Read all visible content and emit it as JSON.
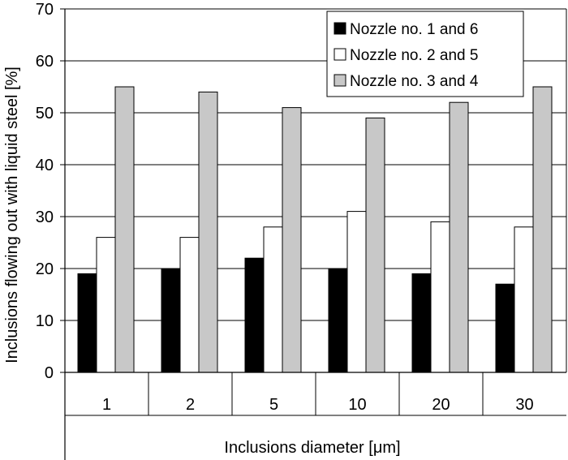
{
  "chart_data": {
    "type": "bar",
    "title": "",
    "xlabel": "Inclusions diameter [μm]",
    "ylabel": "Inclusions flowing out with liquid steel [%]",
    "ylim": [
      0,
      70
    ],
    "yticks": [
      0,
      10,
      20,
      30,
      40,
      50,
      60,
      70
    ],
    "grid": true,
    "legend_position": "top-right",
    "categories": [
      "1",
      "2",
      "5",
      "10",
      "20",
      "30"
    ],
    "series": [
      {
        "name": "Nozzle no. 1 and 6",
        "color": "#000000",
        "values": [
          19,
          20,
          22,
          20,
          19,
          17
        ]
      },
      {
        "name": "Nozzle no. 2 and 5",
        "color": "#ffffff",
        "values": [
          26,
          26,
          28,
          31,
          29,
          28
        ]
      },
      {
        "name": "Nozzle no. 3 and 4",
        "color": "#c8c8c8",
        "values": [
          55,
          54,
          51,
          49,
          52,
          55
        ]
      }
    ]
  }
}
